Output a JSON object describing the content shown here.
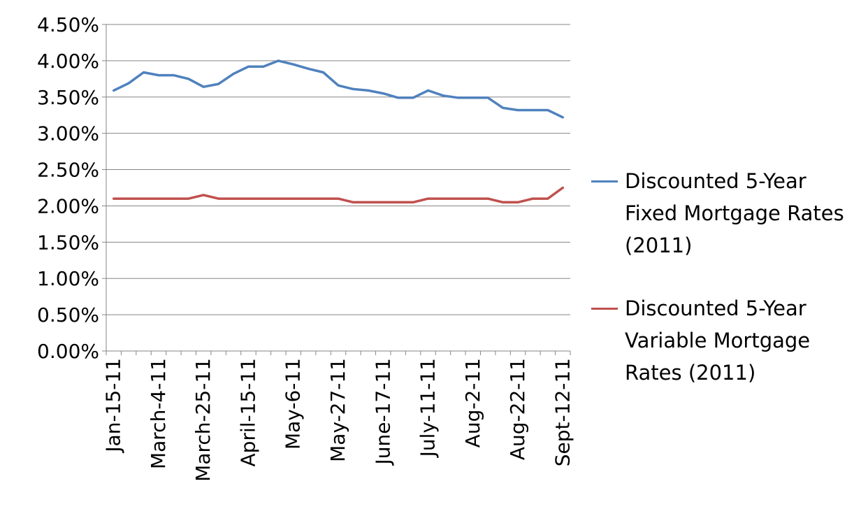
{
  "chart_data": {
    "type": "line",
    "title": "",
    "xlabel": "",
    "ylabel": "",
    "ylim": [
      0,
      0.045
    ],
    "y_ticks": [
      "0.00%",
      "0.50%",
      "1.00%",
      "1.50%",
      "2.00%",
      "2.50%",
      "3.00%",
      "3.50%",
      "4.00%",
      "4.50%"
    ],
    "x_tick_labels": [
      "Jan-15-11",
      "March-4-11",
      "March-25-11",
      "April-15-11",
      "May-6-11",
      "May-27-11",
      "June-17-11",
      "July-11-11",
      "Aug-2-11",
      "Aug-22-11",
      "Sept-12-11"
    ],
    "x_tick_label_indices": [
      0,
      3,
      6,
      9,
      12,
      15,
      18,
      21,
      24,
      27,
      30
    ],
    "point_count": 31,
    "grid": "horizontal",
    "legend_position": "right",
    "series": [
      {
        "name": "Discounted 5-Year Fixed Mortgage Rates (2011)",
        "color": "#4F81BD",
        "values": [
          0.0359,
          0.0369,
          0.0384,
          0.038,
          0.038,
          0.0375,
          0.0364,
          0.0368,
          0.0382,
          0.0392,
          0.0392,
          0.04,
          0.0395,
          0.0389,
          0.0384,
          0.0366,
          0.0361,
          0.0359,
          0.0355,
          0.0349,
          0.0349,
          0.0359,
          0.0352,
          0.0349,
          0.0349,
          0.0349,
          0.0335,
          0.0332,
          0.0332,
          0.0332,
          0.0322
        ]
      },
      {
        "name": "Discounted 5-Year Variable Mortgage Rates (2011)",
        "color": "#C0504D",
        "values": [
          0.021,
          0.021,
          0.021,
          0.021,
          0.021,
          0.021,
          0.0215,
          0.021,
          0.021,
          0.021,
          0.021,
          0.021,
          0.021,
          0.021,
          0.021,
          0.021,
          0.0205,
          0.0205,
          0.0205,
          0.0205,
          0.0205,
          0.021,
          0.021,
          0.021,
          0.021,
          0.021,
          0.0205,
          0.0205,
          0.021,
          0.021,
          0.0225
        ]
      }
    ]
  }
}
